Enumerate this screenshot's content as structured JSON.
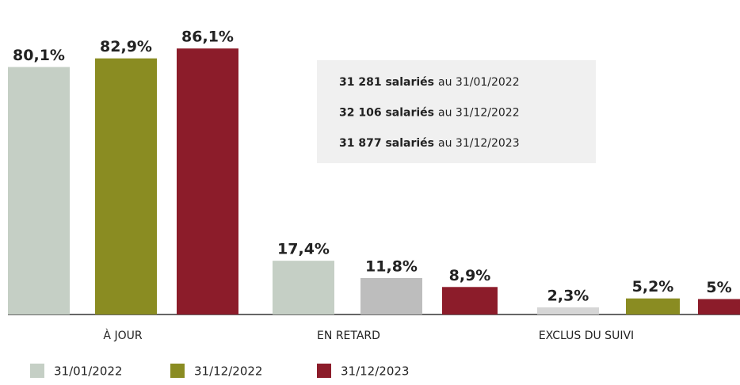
{
  "chart_data": {
    "type": "bar",
    "categories": [
      "À JOUR",
      "EN RETARD",
      "EXCLUS DU SUIVI"
    ],
    "series": [
      {
        "name": "31/01/2022",
        "color": "#c5cfc5",
        "colors": [
          "#c5cfc5",
          "#c5cfc5",
          "#d6d6d6"
        ],
        "values": [
          80.1,
          17.4,
          2.3
        ],
        "value_labels": [
          "80,1%",
          "17,4%",
          "2,3%"
        ]
      },
      {
        "name": "31/12/2022",
        "color": "#8a8c22",
        "colors": [
          "#8a8c22",
          "#bdbdbd",
          "#8a8c22"
        ],
        "values": [
          82.9,
          11.8,
          5.2
        ],
        "value_labels": [
          "82,9%",
          "11,8%",
          "5,2%"
        ]
      },
      {
        "name": "31/12/2023",
        "color": "#8c1c2a",
        "colors": [
          "#8c1c2a",
          "#8c1c2a",
          "#8c1c2a"
        ],
        "values": [
          86.1,
          8.9,
          5
        ],
        "value_labels": [
          "86,1%",
          "8,9%",
          "5%"
        ]
      }
    ],
    "annotations": [
      {
        "bold": "31 281 salariés",
        "text": "au 31/01/2022"
      },
      {
        "bold": "32 106 salariés",
        "text": "au 31/12/2022"
      },
      {
        "bold": "31 877 salariés",
        "text": "au 31/12/2023"
      }
    ]
  }
}
